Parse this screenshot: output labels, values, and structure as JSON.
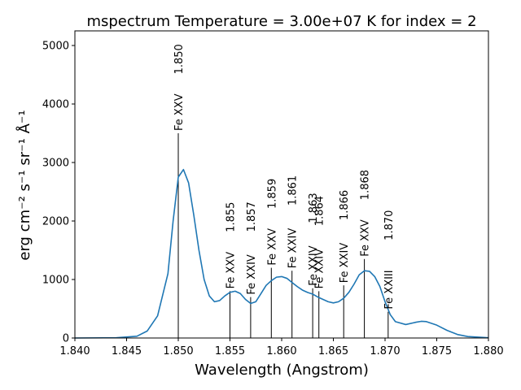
{
  "chart_data": {
    "type": "line",
    "title": "mspectrum Temperature =   3.00e+07 K for index =   2",
    "xlabel": "Wavelength (Angstrom)",
    "ylabel": "erg cm⁻² s⁻¹ sr⁻¹ Å⁻¹",
    "xlim": [
      1.84,
      1.88
    ],
    "ylim": [
      0,
      5250
    ],
    "x_ticks": [
      "1.840",
      "1.845",
      "1.850",
      "1.855",
      "1.860",
      "1.865",
      "1.870",
      "1.875",
      "1.880"
    ],
    "y_ticks": [
      "0",
      "1000",
      "2000",
      "3000",
      "4000",
      "5000"
    ],
    "grid": false,
    "line_color": "#1f77b4",
    "spectrum": {
      "x": [
        1.84,
        1.844,
        1.846,
        1.847,
        1.848,
        1.849,
        1.8495,
        1.85,
        1.8505,
        1.851,
        1.8515,
        1.852,
        1.8525,
        1.853,
        1.8535,
        1.854,
        1.8545,
        1.855,
        1.8555,
        1.856,
        1.8565,
        1.857,
        1.8575,
        1.858,
        1.8585,
        1.859,
        1.8595,
        1.86,
        1.8605,
        1.861,
        1.8615,
        1.862,
        1.8625,
        1.863,
        1.8635,
        1.864,
        1.8645,
        1.865,
        1.8655,
        1.866,
        1.8665,
        1.867,
        1.8675,
        1.868,
        1.8685,
        1.869,
        1.8695,
        1.87,
        1.8705,
        1.871,
        1.872,
        1.873,
        1.8735,
        1.874,
        1.875,
        1.876,
        1.877,
        1.878,
        1.88
      ],
      "y": [
        0,
        5,
        30,
        120,
        380,
        1100,
        2000,
        2750,
        2880,
        2650,
        2100,
        1500,
        1000,
        720,
        620,
        640,
        720,
        780,
        800,
        760,
        660,
        590,
        620,
        760,
        900,
        980,
        1040,
        1050,
        1020,
        950,
        880,
        820,
        780,
        750,
        700,
        660,
        620,
        600,
        620,
        680,
        780,
        920,
        1080,
        1150,
        1140,
        1050,
        880,
        620,
        400,
        280,
        230,
        270,
        285,
        280,
        220,
        130,
        60,
        25,
        5
      ]
    },
    "lines": [
      {
        "wavelength": 1.85,
        "label": "1.850",
        "ion": "Fe XXV",
        "intensity": 3500
      },
      {
        "wavelength": 1.855,
        "label": "1.855",
        "ion": "Fe XXV",
        "intensity": 800
      },
      {
        "wavelength": 1.857,
        "label": "1.857",
        "ion": "Fe XXIV",
        "intensity": 700
      },
      {
        "wavelength": 1.859,
        "label": "1.859",
        "ion": "Fe XXV",
        "intensity": 1200
      },
      {
        "wavelength": 1.861,
        "label": "1.861",
        "ion": "Fe XXIV",
        "intensity": 1150
      },
      {
        "wavelength": 1.863,
        "label": "1.863",
        "ion": "Fe XXIV",
        "intensity": 850
      },
      {
        "wavelength": 1.8636,
        "label": "1.864",
        "ion": "Fe XXIV",
        "intensity": 800
      },
      {
        "wavelength": 1.866,
        "label": "1.866",
        "ion": "Fe XXIV",
        "intensity": 900
      },
      {
        "wavelength": 1.868,
        "label": "1.868",
        "ion": "Fe XXV",
        "intensity": 1350
      },
      {
        "wavelength": 1.8703,
        "label": "1.870",
        "ion": "Fe XXIII",
        "intensity": 450
      }
    ]
  }
}
